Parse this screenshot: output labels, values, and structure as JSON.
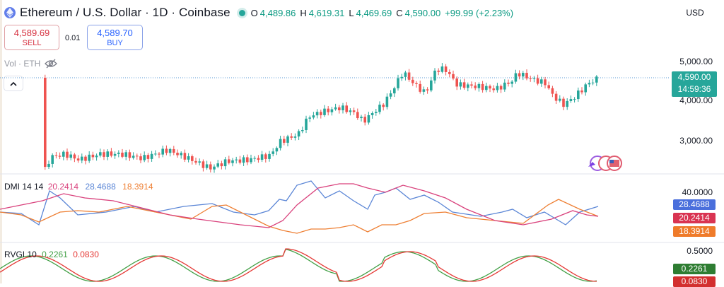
{
  "header": {
    "title": "Ethereum / U.S. Dollar · 1D · Coinbase",
    "ohlc": [
      {
        "label": "O",
        "value": "4,489.86"
      },
      {
        "label": "H",
        "value": "4,619.31"
      },
      {
        "label": "L",
        "value": "4,469.69"
      },
      {
        "label": "C",
        "value": "4,590.00"
      }
    ],
    "change": "+99.99 (+2.23%)",
    "currency": "USD"
  },
  "trade": {
    "sell_price": "4,589.69",
    "sell_label": "SELL",
    "buy_price": "4,589.70",
    "buy_label": "BUY",
    "spread": "0.01"
  },
  "volume": {
    "label": "Vol · ETH"
  },
  "price_axis": {
    "labels": [
      "5,000.00",
      "4,000.00",
      "3,000.00"
    ],
    "current_price": "4,590.00",
    "countdown": "14:59:36"
  },
  "dmi": {
    "title": "DMI 14 14",
    "values": [
      "20.2414",
      "28.4688",
      "18.3914"
    ],
    "axis_label": "40.0000",
    "tags": [
      "28.4688",
      "20.2414",
      "18.3914"
    ]
  },
  "rvgi": {
    "title": "RVGI 10",
    "values": [
      "0.2261",
      "0.0830"
    ],
    "axis_label": "0.5000",
    "tags": [
      "0.2261",
      "0.0830"
    ]
  },
  "colors": {
    "up": "#26a69a",
    "down": "#ef5350",
    "dmi_plus": "#5b86d6",
    "dmi_minus": "#ee7f33",
    "adx": "#d9417c",
    "rvgi": "#43a047",
    "rvgi_signal": "#e53935"
  },
  "icons": [
    "ethereum-logo-icon",
    "eye-off-icon",
    "chevron-up-icon",
    "news-flags-icon"
  ]
}
